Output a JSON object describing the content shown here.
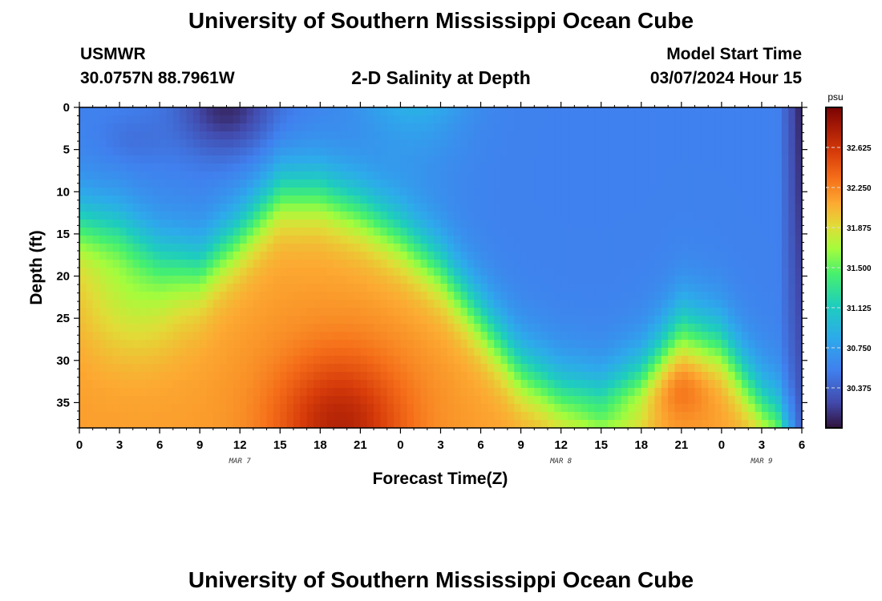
{
  "page": {
    "title": "University of Southern Mississippi Ocean Cube",
    "footer_title": "University of Southern Mississippi Ocean Cube"
  },
  "header": {
    "station": "USMWR",
    "coords": "30.0757N  88.7961W",
    "plot_title": "2-D Salinity at Depth",
    "model_label": "Model Start Time",
    "model_time": "03/07/2024 Hour 15"
  },
  "chart_data": {
    "type": "heatmap",
    "title": "2-D Salinity at Depth",
    "xlabel": "Forecast Time(Z)",
    "ylabel": "Depth (ft)",
    "x_range_hours": [
      0,
      54
    ],
    "y_range_ft": [
      0,
      38
    ],
    "x_ticks": [
      "0",
      "3",
      "6",
      "9",
      "12",
      "15",
      "18",
      "21",
      "0",
      "3",
      "6",
      "9",
      "12",
      "15",
      "18",
      "21",
      "0",
      "3",
      "6"
    ],
    "x_tick_hours": [
      0,
      3,
      6,
      9,
      12,
      15,
      18,
      21,
      24,
      27,
      30,
      33,
      36,
      39,
      42,
      45,
      48,
      51,
      54
    ],
    "y_ticks": [
      "0",
      "5",
      "10",
      "15",
      "20",
      "25",
      "30",
      "35"
    ],
    "y_tick_values": [
      0,
      5,
      10,
      15,
      20,
      25,
      30,
      35
    ],
    "date_labels": [
      {
        "text": "MAR 7",
        "hour": 12
      },
      {
        "text": "MAR 8",
        "hour": 36
      },
      {
        "text": "MAR 9",
        "hour": 51
      }
    ],
    "colorbar": {
      "unit": "psu",
      "min": 30.0,
      "max": 33.0,
      "ticks": [
        "30.375",
        "30.750",
        "31.125",
        "31.500",
        "31.875",
        "32.250",
        "32.625"
      ],
      "tick_values": [
        30.375,
        30.75,
        31.125,
        31.5,
        31.875,
        32.25,
        32.625
      ]
    },
    "halocline_depth_ft": {
      "hours": [
        0,
        3,
        6,
        9,
        12,
        15,
        18,
        21,
        24,
        27,
        30,
        33,
        36,
        39,
        42,
        45,
        48,
        51,
        53,
        54
      ],
      "depths": [
        14,
        15,
        18,
        19,
        15,
        10,
        10,
        12,
        15,
        19,
        25,
        31,
        34,
        35,
        32,
        26,
        28,
        35,
        38,
        38
      ]
    },
    "surface_min_psu": 30.0,
    "deep_max_psu": 32.9
  }
}
